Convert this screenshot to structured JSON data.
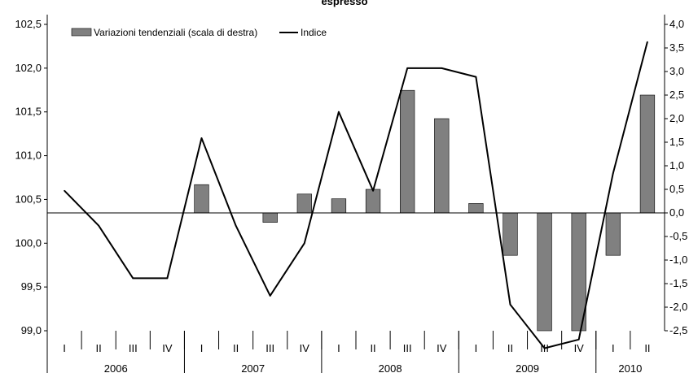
{
  "chart_data": {
    "type": "bar",
    "title": "espresso",
    "categories": [
      "I",
      "II",
      "III",
      "IV",
      "I",
      "II",
      "III",
      "IV",
      "I",
      "II",
      "III",
      "IV",
      "I",
      "II",
      "III",
      "IV",
      "I",
      "II"
    ],
    "years": [
      {
        "label": "2006",
        "span": 4
      },
      {
        "label": "2007",
        "span": 4
      },
      {
        "label": "2008",
        "span": 4
      },
      {
        "label": "2009",
        "span": 4
      },
      {
        "label": "2010",
        "span": 2
      }
    ],
    "series": [
      {
        "name": "Variazioni tendenziali (scala di destra)",
        "type": "bar",
        "axis": "right",
        "color": "#808080",
        "values": [
          null,
          null,
          null,
          null,
          0.6,
          null,
          -0.2,
          0.4,
          0.3,
          0.5,
          2.6,
          2.0,
          0.2,
          -0.9,
          -2.5,
          -2.5,
          -0.9,
          2.5
        ]
      },
      {
        "name": "Indice",
        "type": "line",
        "axis": "left",
        "color": "#000000",
        "values": [
          100.6,
          100.2,
          99.6,
          99.6,
          101.2,
          100.2,
          99.4,
          100.0,
          101.5,
          100.6,
          102.0,
          102.0,
          101.9,
          99.3,
          98.8,
          98.9,
          100.8,
          102.3
        ]
      }
    ],
    "left_axis": {
      "ticks": [
        "99,0",
        "99,5",
        "100,0",
        "100,5",
        "101,0",
        "101,5",
        "102,0",
        "102,5"
      ],
      "tick_values": [
        99.0,
        99.5,
        100.0,
        100.5,
        101.0,
        101.5,
        102.0,
        102.5
      ],
      "ylim": [
        99.0,
        102.5
      ]
    },
    "right_axis": {
      "ticks": [
        "-2,5",
        "-2,0",
        "-1,5",
        "-1,0",
        "-0,5",
        "0,0",
        "0,5",
        "1,0",
        "1,5",
        "2,0",
        "2,5",
        "3,0",
        "3,5",
        "4,0"
      ],
      "tick_values": [
        -2.5,
        -2.0,
        -1.5,
        -1.0,
        -0.5,
        0.0,
        0.5,
        1.0,
        1.5,
        2.0,
        2.5,
        3.0,
        3.5,
        4.0
      ],
      "ylim": [
        -2.5,
        4.0
      ]
    },
    "legend": {
      "position": "top-left",
      "entries": [
        "Variazioni tendenziali (scala di destra)",
        "Indice"
      ]
    },
    "grid": false
  }
}
